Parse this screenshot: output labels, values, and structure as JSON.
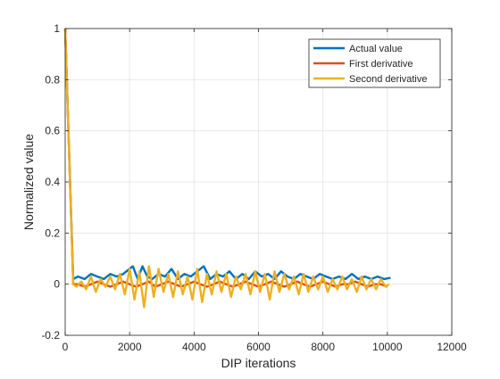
{
  "chart_data": {
    "type": "line",
    "xlabel": "DIP iterations",
    "ylabel": "Normalized value",
    "xlim": [
      0,
      12000
    ],
    "ylim": [
      -0.2,
      1
    ],
    "xticks": [
      0,
      2000,
      4000,
      6000,
      8000,
      10000,
      12000
    ],
    "xtick_labels": [
      "0",
      "2000",
      "4000",
      "6000",
      "8000",
      "10000",
      "12000"
    ],
    "yticks": [
      -0.2,
      0,
      0.2,
      0.4,
      0.6,
      0.8,
      1
    ],
    "ytick_labels": [
      "-0.2",
      "0",
      "0.2",
      "0.4",
      "0.6",
      "0.8",
      "1"
    ],
    "grid": true,
    "legend_position": "top-right",
    "series": [
      {
        "name": "Actual value",
        "color": "#0072BD",
        "x": [
          0,
          250,
          400,
          600,
          800,
          1000,
          1200,
          1400,
          1600,
          1800,
          2000,
          2100,
          2250,
          2400,
          2550,
          2700,
          2900,
          3100,
          3300,
          3500,
          3700,
          3900,
          4100,
          4300,
          4500,
          4700,
          4900,
          5100,
          5300,
          5500,
          5700,
          5900,
          6100,
          6300,
          6500,
          6700,
          6900,
          7100,
          7300,
          7500,
          7700,
          7900,
          8100,
          8300,
          8500,
          8700,
          8900,
          9100,
          9300,
          9500,
          9700,
          9900,
          10100
        ],
        "y": [
          1,
          0.02,
          0.03,
          0.02,
          0.04,
          0.03,
          0.02,
          0.04,
          0.03,
          0.04,
          0.06,
          0.07,
          0.02,
          0.07,
          0.03,
          0.02,
          0.04,
          0.03,
          0.06,
          0.02,
          0.04,
          0.03,
          0.05,
          0.07,
          0.02,
          0.04,
          0.03,
          0.05,
          0.02,
          0.04,
          0.02,
          0.05,
          0.03,
          0.04,
          0.02,
          0.05,
          0.03,
          0.02,
          0.04,
          0.03,
          0.02,
          0.04,
          0.03,
          0.02,
          0.03,
          0.02,
          0.04,
          0.02,
          0.03,
          0.02,
          0.03,
          0.02,
          0.025
        ]
      },
      {
        "name": "First derivative",
        "color": "#D95319",
        "x": [
          0,
          250,
          400,
          600,
          800,
          1000,
          1200,
          1400,
          1600,
          1800,
          2000,
          2200,
          2400,
          2600,
          2800,
          3000,
          3200,
          3400,
          3600,
          3800,
          4000,
          4200,
          4400,
          4600,
          4800,
          5000,
          5200,
          5400,
          5600,
          5800,
          6000,
          6200,
          6400,
          6600,
          6800,
          7000,
          7200,
          7400,
          7600,
          7800,
          8000,
          8200,
          8400,
          8600,
          8800,
          9000,
          9200,
          9400,
          9600,
          9800,
          10000
        ],
        "y": [
          1,
          0.0,
          0.0,
          -0.01,
          0.0,
          0.01,
          0.0,
          -0.01,
          0.0,
          0.01,
          0.0,
          -0.01,
          0.0,
          0.01,
          -0.01,
          0.0,
          0.01,
          0.0,
          -0.01,
          0.0,
          0.01,
          0.0,
          -0.01,
          0.0,
          0.01,
          0.0,
          -0.01,
          0.0,
          0.01,
          0.0,
          -0.01,
          0.0,
          0.01,
          0.0,
          -0.01,
          0.0,
          0.01,
          0.0,
          -0.01,
          0.0,
          0.01,
          0.0,
          -0.01,
          0.0,
          0.0,
          0.01,
          0.0,
          -0.01,
          0.0,
          0.0,
          -0.01
        ]
      },
      {
        "name": "Second derivative",
        "color": "#EDB120",
        "x": [
          0,
          250,
          350,
          500,
          650,
          800,
          950,
          1100,
          1250,
          1400,
          1550,
          1700,
          1850,
          2000,
          2150,
          2300,
          2450,
          2600,
          2750,
          2900,
          3050,
          3200,
          3350,
          3500,
          3650,
          3800,
          3950,
          4100,
          4250,
          4400,
          4550,
          4700,
          4850,
          5000,
          5150,
          5300,
          5450,
          5600,
          5750,
          5900,
          6050,
          6200,
          6350,
          6500,
          6650,
          6800,
          6950,
          7100,
          7250,
          7400,
          7550,
          7700,
          7850,
          8000,
          8150,
          8300,
          8450,
          8600,
          8750,
          8900,
          9050,
          9200,
          9350,
          9500,
          9650,
          9800,
          9950,
          10050
        ],
        "y": [
          1,
          0.0,
          -0.01,
          0.01,
          -0.02,
          0.03,
          -0.03,
          0.02,
          -0.01,
          0.03,
          -0.02,
          0.04,
          -0.04,
          0.06,
          -0.06,
          0.05,
          -0.09,
          0.07,
          -0.05,
          0.06,
          -0.03,
          0.04,
          -0.05,
          0.05,
          -0.04,
          0.03,
          -0.06,
          0.06,
          -0.07,
          0.04,
          -0.04,
          0.05,
          -0.03,
          0.04,
          -0.05,
          0.03,
          -0.02,
          0.04,
          -0.04,
          0.05,
          -0.03,
          0.04,
          -0.06,
          0.05,
          -0.03,
          0.04,
          -0.02,
          0.03,
          -0.04,
          0.04,
          -0.03,
          0.03,
          -0.02,
          0.03,
          -0.03,
          0.02,
          -0.02,
          0.03,
          -0.02,
          0.02,
          -0.03,
          0.03,
          -0.02,
          0.02,
          -0.02,
          0.02,
          -0.01,
          0.0
        ]
      }
    ]
  }
}
